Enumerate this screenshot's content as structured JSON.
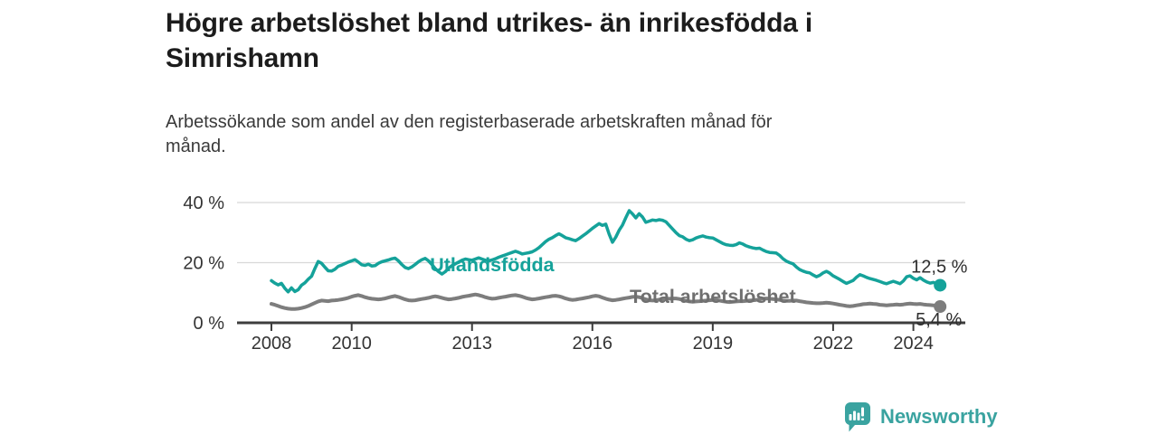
{
  "header": {
    "title": "Högre arbetslöshet bland utrikes- än inrikesfödda i Simrishamn",
    "title_lines": [
      "Högre arbetslöshet bland utrikes- än inrikesfödda i",
      "Simrishamn"
    ],
    "subtitle": "Arbetssökande som andel av den registerbaserade arbetskraften månad för månad.",
    "subtitle_lines": [
      "Arbetssökande som andel av den registerbaserade arbetskraften månad för",
      "månad."
    ]
  },
  "footer": {
    "brand": "Newsworthy",
    "brand_color": "#3aa3a0"
  },
  "chart_data": {
    "type": "line",
    "title": "Högre arbetslöshet bland utrikes- än inrikesfödda i Simrishamn",
    "subtitle": "Arbetssökande som andel av den registerbaserade arbetskraften månad för månad.",
    "x_unit": "month",
    "x_start": "2008-01",
    "x_end": "2024-09",
    "x_ticks": [
      2008,
      2010,
      2013,
      2016,
      2019,
      2022,
      2024
    ],
    "y_ticks": [
      0,
      20,
      40
    ],
    "y_tick_suffix": " %",
    "ylim": [
      0,
      42
    ],
    "grid": "horizontal",
    "legend_position": "inline-labels",
    "axis_color": "#3d3d3d",
    "grid_color": "#d8d8d8",
    "tick_label_color": "#333333",
    "value_label_color": "#2e2e2e",
    "series": [
      {
        "name": "Utlandsfödda",
        "color": "#15a29a",
        "label_color": "#15a29a",
        "label_x": 2013.5,
        "label_y": 19.2,
        "end_label": "12,5 %",
        "end_value": 12.5,
        "values": [
          14.0,
          13.2,
          12.6,
          13.1,
          11.5,
          10.3,
          11.6,
          10.4,
          11.0,
          12.5,
          13.3,
          14.5,
          15.5,
          18.0,
          20.4,
          19.8,
          18.5,
          17.3,
          17.2,
          17.8,
          18.8,
          19.2,
          19.7,
          20.2,
          20.6,
          21.0,
          20.2,
          19.3,
          19.1,
          19.5,
          18.9,
          19.0,
          19.8,
          20.3,
          20.6,
          20.9,
          21.3,
          21.5,
          20.6,
          19.4,
          18.4,
          18.0,
          18.6,
          19.4,
          20.3,
          21.0,
          21.4,
          20.6,
          19.4,
          18.0,
          17.0,
          16.2,
          17.0,
          18.2,
          19.0,
          19.6,
          20.2,
          20.8,
          21.2,
          21.0,
          20.8,
          21.2,
          21.6,
          21.2,
          20.8,
          20.6,
          20.9,
          21.3,
          21.8,
          22.2,
          22.6,
          23.0,
          23.4,
          23.8,
          23.4,
          22.9,
          23.1,
          23.3,
          23.6,
          24.2,
          25.0,
          26.0,
          27.0,
          27.8,
          28.3,
          29.0,
          29.6,
          29.0,
          28.3,
          28.0,
          27.6,
          27.3,
          28.0,
          28.8,
          29.6,
          30.5,
          31.4,
          32.2,
          33.0,
          32.4,
          32.8,
          29.5,
          26.8,
          28.5,
          30.8,
          32.5,
          35.0,
          37.3,
          36.2,
          34.9,
          36.3,
          35.2,
          33.4,
          33.8,
          34.2,
          34.0,
          34.3,
          34.1,
          33.6,
          32.4,
          31.2,
          30.0,
          29.0,
          28.6,
          27.8,
          27.3,
          27.6,
          28.2,
          28.6,
          28.9,
          28.5,
          28.3,
          28.2,
          27.6,
          27.0,
          26.4,
          26.0,
          25.8,
          25.7,
          26.0,
          26.6,
          26.2,
          25.6,
          25.2,
          24.9,
          24.7,
          24.8,
          24.2,
          23.7,
          23.4,
          23.3,
          23.2,
          22.4,
          21.3,
          20.5,
          20.0,
          19.6,
          18.6,
          17.7,
          17.2,
          16.8,
          16.6,
          15.9,
          15.3,
          15.8,
          16.6,
          17.1,
          16.5,
          15.6,
          15.0,
          14.4,
          13.7,
          13.1,
          13.6,
          14.1,
          15.2,
          16.0,
          15.6,
          15.1,
          14.7,
          14.4,
          14.1,
          13.7,
          13.3,
          13.0,
          13.4,
          13.8,
          13.4,
          13.0,
          13.9,
          15.3,
          15.6,
          14.8,
          14.3,
          15.0,
          14.2,
          13.6,
          13.2,
          13.4,
          13.0,
          12.5
        ]
      },
      {
        "name": "Total arbetslöshet",
        "color": "#7d7d7d",
        "label_color": "#6f6f6f",
        "label_x": 2019.0,
        "label_y": 8.7,
        "end_label": "5,4 %",
        "end_value": 5.4,
        "values": [
          6.3,
          6.0,
          5.6,
          5.2,
          4.9,
          4.7,
          4.6,
          4.6,
          4.7,
          4.9,
          5.2,
          5.6,
          6.1,
          6.6,
          7.1,
          7.4,
          7.3,
          7.2,
          7.4,
          7.5,
          7.6,
          7.8,
          8.0,
          8.3,
          8.7,
          9.0,
          9.2,
          8.9,
          8.5,
          8.2,
          8.0,
          7.9,
          7.8,
          7.9,
          8.1,
          8.4,
          8.7,
          8.9,
          8.6,
          8.2,
          7.8,
          7.5,
          7.4,
          7.5,
          7.7,
          7.9,
          8.1,
          8.3,
          8.6,
          8.8,
          8.6,
          8.3,
          8.0,
          7.8,
          7.9,
          8.1,
          8.3,
          8.6,
          8.8,
          9.0,
          9.2,
          9.4,
          9.2,
          8.9,
          8.5,
          8.2,
          8.0,
          8.1,
          8.3,
          8.5,
          8.7,
          8.9,
          9.1,
          9.2,
          9.0,
          8.7,
          8.3,
          8.0,
          7.8,
          7.9,
          8.1,
          8.3,
          8.5,
          8.7,
          8.9,
          9.0,
          8.8,
          8.5,
          8.1,
          7.8,
          7.6,
          7.7,
          7.9,
          8.1,
          8.3,
          8.5,
          8.8,
          9.0,
          8.8,
          8.4,
          8.0,
          7.7,
          7.5,
          7.6,
          7.8,
          8.0,
          8.2,
          8.4,
          8.6,
          8.7,
          8.5,
          8.2,
          7.8,
          7.5,
          7.4,
          7.5,
          7.7,
          7.8,
          7.9,
          8.0,
          8.1,
          8.1,
          7.9,
          7.6,
          7.3,
          7.1,
          7.0,
          7.1,
          7.2,
          7.3,
          7.4,
          7.5,
          7.6,
          7.6,
          7.4,
          7.2,
          7.0,
          6.9,
          7.0,
          7.1,
          7.2,
          7.2,
          7.3,
          7.4,
          7.5,
          7.6,
          7.8,
          8.0,
          8.1,
          8.0,
          7.9,
          7.8,
          7.6,
          7.4,
          7.3,
          7.3,
          7.4,
          7.4,
          7.2,
          7.0,
          6.8,
          6.7,
          6.6,
          6.5,
          6.5,
          6.6,
          6.7,
          6.6,
          6.4,
          6.2,
          6.0,
          5.8,
          5.6,
          5.5,
          5.6,
          5.8,
          6.0,
          6.2,
          6.3,
          6.4,
          6.3,
          6.2,
          6.0,
          5.9,
          5.8,
          5.9,
          6.0,
          6.1,
          6.0,
          6.1,
          6.3,
          6.4,
          6.3,
          6.2,
          6.3,
          6.1,
          6.0,
          5.9,
          5.8,
          5.6,
          5.4
        ]
      }
    ]
  }
}
